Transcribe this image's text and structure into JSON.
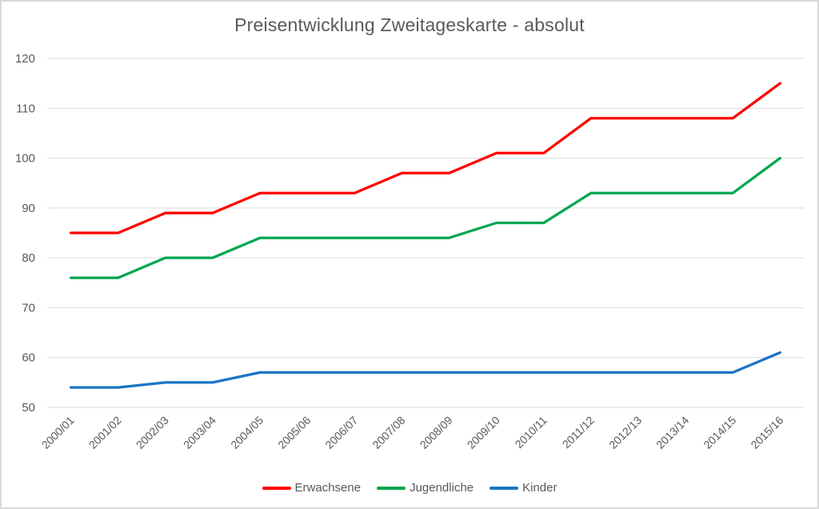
{
  "title": "Preisentwicklung Zweitageskarte - absolut",
  "colors": {
    "background": "#ffffff",
    "border": "#d9d9d9",
    "grid": "#d9d9d9",
    "axis_text": "#595959",
    "title_text": "#595959",
    "series_red": "#ff0000",
    "series_green": "#00a650",
    "series_blue": "#1b74c5"
  },
  "chart_data": {
    "type": "line",
    "title": "Preisentwicklung Zweitageskarte - absolut",
    "xlabel": "",
    "ylabel": "",
    "ylim": [
      50,
      120
    ],
    "yticks": [
      50,
      60,
      70,
      80,
      90,
      100,
      110,
      120
    ],
    "grid": "horizontal-only",
    "legend_position": "bottom",
    "x_label_rotation_deg": -45,
    "categories": [
      "2000/01",
      "2001/02",
      "2002/03",
      "2003/04",
      "2004/05",
      "2005/06",
      "2006/07",
      "2007/08",
      "2008/09",
      "2009/10",
      "2010/11",
      "2011/12",
      "2012/13",
      "2013/14",
      "2014/15",
      "2015/16"
    ],
    "series": [
      {
        "name": "Erwachsene",
        "color": "#ff0000",
        "values": [
          85,
          85,
          89,
          89,
          93,
          93,
          93,
          97,
          97,
          101,
          101,
          108,
          108,
          108,
          108,
          115
        ]
      },
      {
        "name": "Jugendliche",
        "color": "#00a650",
        "values": [
          76,
          76,
          80,
          80,
          84,
          84,
          84,
          84,
          84,
          87,
          87,
          93,
          93,
          93,
          93,
          100
        ]
      },
      {
        "name": "Kinder",
        "color": "#1b74c5",
        "values": [
          54,
          54,
          55,
          55,
          57,
          57,
          57,
          57,
          57,
          57,
          57,
          57,
          57,
          57,
          57,
          61
        ]
      }
    ]
  }
}
